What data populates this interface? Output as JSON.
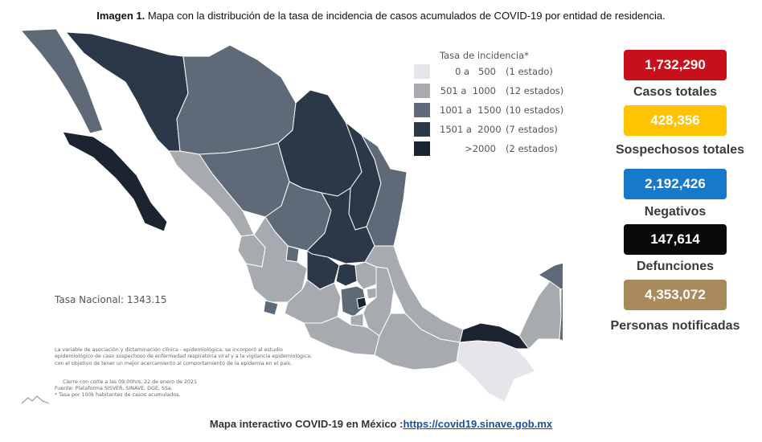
{
  "caption": {
    "prefix": "Imagen 1.",
    "text": " Mapa con la distribución de la tasa de incidencia de casos acumulados de COVID-19 por entidad de residencia."
  },
  "legend": {
    "title": "Tasa de incidencia*",
    "items": [
      {
        "range": "0 a   500",
        "count": "(1 estado)",
        "color": "#e4e6e9"
      },
      {
        "range": "501 a  1000",
        "count": "(12 estados)",
        "color": "#a7abb0"
      },
      {
        "range": "1001 a  1500",
        "count": "(10 estados)",
        "color": "#5e6a78"
      },
      {
        "range": "1501 a  2000",
        "count": "(7 estados)",
        "color": "#2b3847"
      },
      {
        "range": ">2000",
        "count": "(2 estados)",
        "color": "#1b2430"
      }
    ]
  },
  "stats": [
    {
      "value": "1,732,290",
      "label": "Casos totales",
      "color": "#c8101c"
    },
    {
      "value": "428,356",
      "label": "Sospechosos totales",
      "color": "#ffc400"
    },
    {
      "value": "2,192,426",
      "label": "Negativos",
      "color": "#1779c9"
    },
    {
      "value": "147,614",
      "label": "Defunciones",
      "color": "#0a0a0a"
    },
    {
      "value": "4,353,072",
      "label": "Personas notificadas",
      "color": "#a88a5c"
    }
  ],
  "tasa_nacional": "Tasa Nacional: 1343.15",
  "note_lines": [
    "La variable de asociación y dictaminación clínica - epidemiológica, se incorporó al estudio",
    "epidemiológico de caso sospechoso de enfermedad respiratoria viral y a la vigilancia epidemiológica;",
    "con el objetivo de tener un mejor acercamiento al comportamiento de la epidemia en el país."
  ],
  "sources": {
    "cierre": "Cierre con corte a las 09:00hrs, 22 de enero de 2021",
    "fuente": "Fuente: Plataforma SISVER, SINAVE, DGE, SSa.",
    "tasa_note": "* Tasa por 100k habitantes de casos acumulados."
  },
  "footer": {
    "label": "Mapa interactivo COVID-19 en México :",
    "link_text": "https://covid19.sinave.gob.mx"
  }
}
